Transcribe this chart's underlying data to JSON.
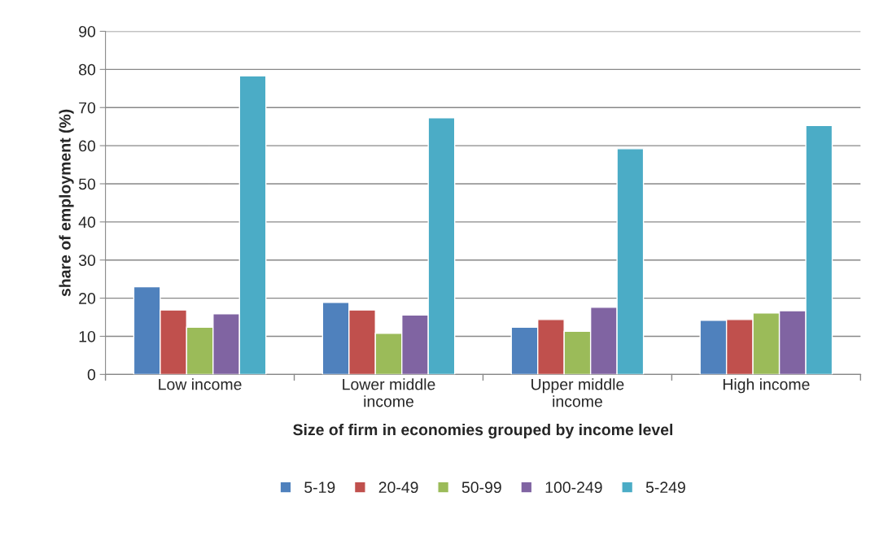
{
  "chart_data": {
    "type": "bar",
    "xlabel": "Size of firm in economies grouped by income level",
    "ylabel": "share of employment (%)",
    "categories": [
      "Low income",
      "Lower middle\nincome",
      "Upper middle\nincome",
      "High income"
    ],
    "series": [
      {
        "name": "5-19",
        "color": "#4f81bd",
        "values": [
          23.0,
          18.9,
          12.4,
          14.2
        ]
      },
      {
        "name": "20-49",
        "color": "#c0504d",
        "values": [
          16.9,
          16.9,
          14.4,
          14.4
        ]
      },
      {
        "name": "50-99",
        "color": "#9bbb59",
        "values": [
          12.4,
          10.8,
          11.3,
          16.1
        ]
      },
      {
        "name": "100-249",
        "color": "#8064a2",
        "values": [
          15.9,
          15.6,
          17.6,
          16.7
        ]
      },
      {
        "name": "5-249",
        "color": "#4bacc6",
        "values": [
          78.3,
          67.3,
          59.2,
          65.3
        ]
      }
    ],
    "ylim": [
      0,
      90
    ],
    "yticks": [
      0,
      10,
      20,
      30,
      40,
      50,
      60,
      70,
      80,
      90
    ],
    "grid": "y",
    "legend": "bottom"
  }
}
